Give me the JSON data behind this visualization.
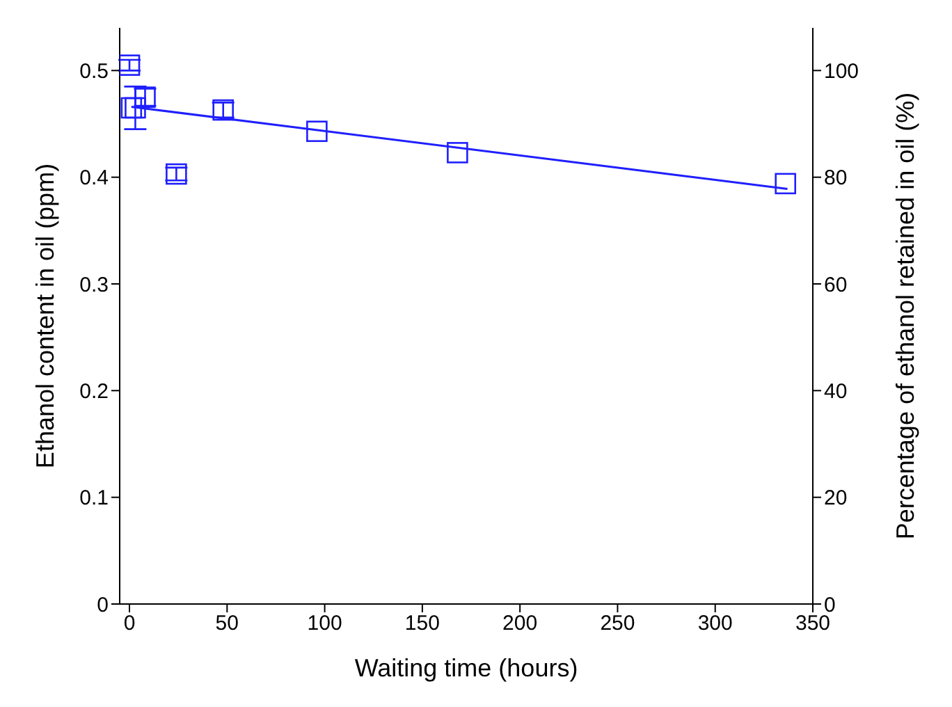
{
  "chart_data": {
    "type": "scatter",
    "xlabel": "Waiting time (hours)",
    "ylabel": "Ethanol content in oil (ppm)",
    "y2label": "Percentage of ethanol retained in oil (%)",
    "xlim": [
      -5,
      350
    ],
    "xticks": [
      0,
      50,
      100,
      150,
      200,
      250,
      300,
      350
    ],
    "ylim": [
      0,
      0.54
    ],
    "yticks": [
      0.0,
      {
        "value": 0.1,
        "label": "0.1"
      },
      {
        "value": 0.2,
        "label": "0.2"
      },
      {
        "value": 0.3,
        "label": "0.3"
      },
      {
        "value": 0.4,
        "label": "0.4"
      },
      {
        "value": 0.5,
        "label": "0.5"
      }
    ],
    "y2lim": [
      0,
      108
    ],
    "y2ticks": [
      0,
      20,
      40,
      60,
      80,
      100
    ],
    "grid": false,
    "legend": false,
    "series": [
      {
        "color": "#1f1fff",
        "marker": "square",
        "x": [
          0,
          1,
          3,
          8,
          24,
          48,
          96,
          168,
          336
        ],
        "values": [
          0.505,
          0.465,
          0.465,
          0.475,
          0.403,
          0.463,
          0.443,
          0.423,
          0.394
        ],
        "errors": [
          0.005,
          null,
          0.02,
          0.008,
          0.006,
          0.007,
          null,
          null,
          null
        ]
      },
      {
        "type": "line",
        "color": "#1f1fff",
        "marker": "none",
        "x": [
          1,
          337
        ],
        "values": [
          0.466,
          0.389
        ]
      }
    ]
  }
}
